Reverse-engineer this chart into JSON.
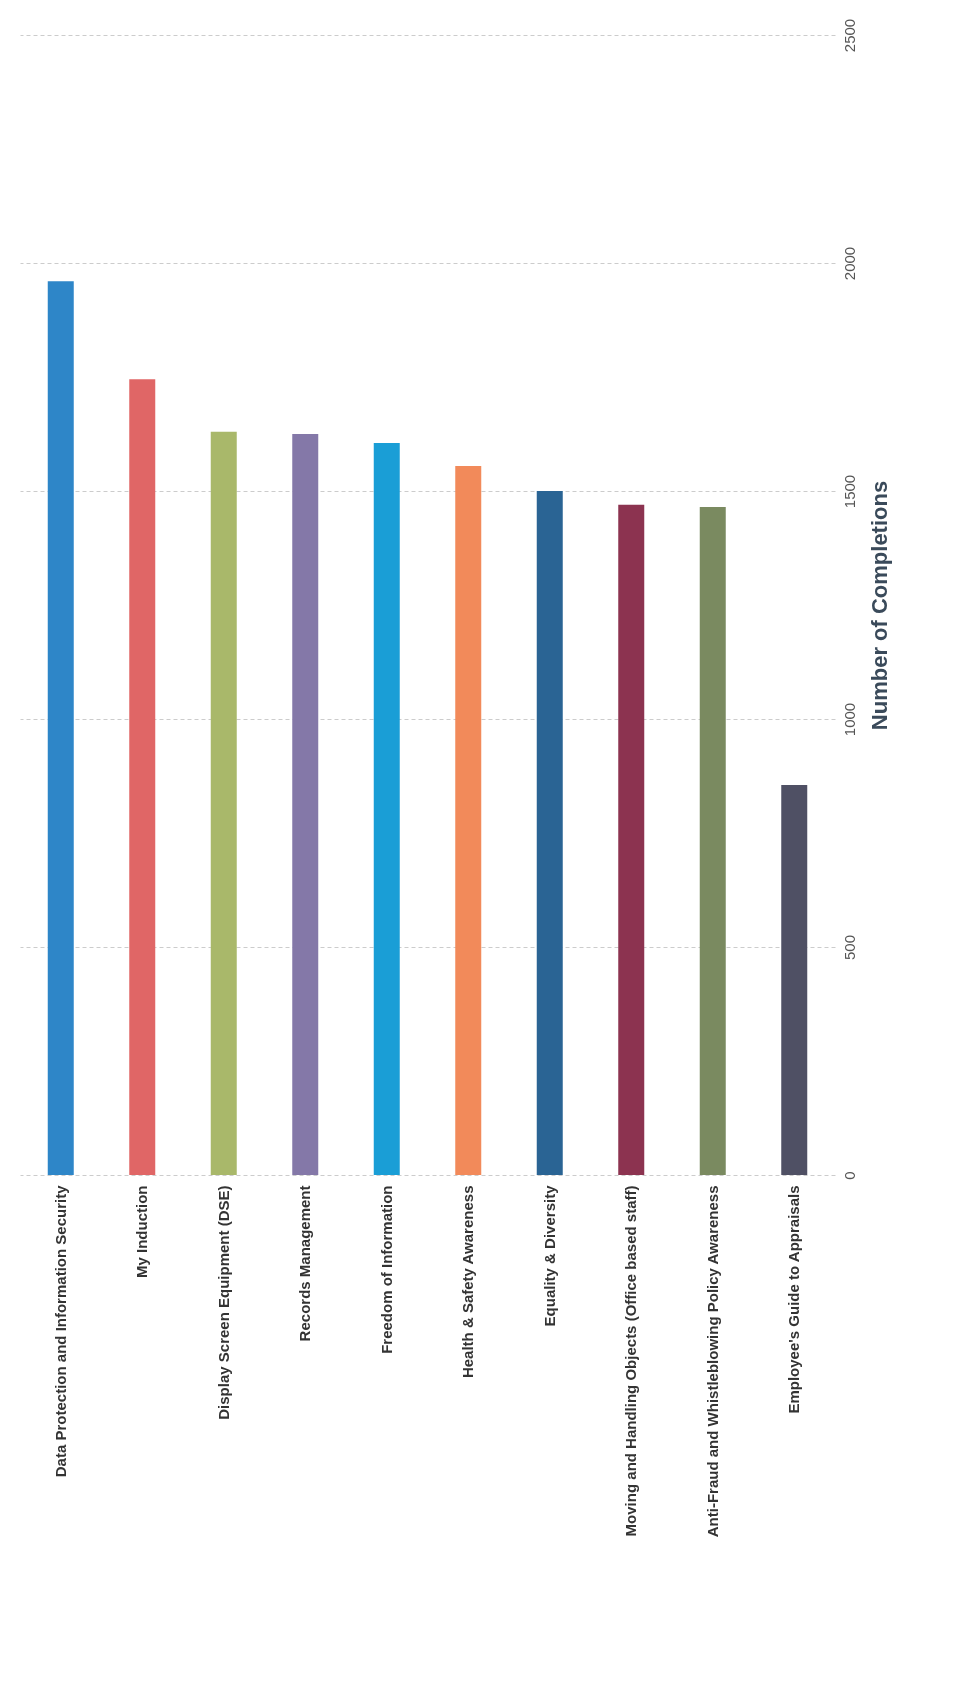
{
  "chart_data": {
    "type": "bar",
    "ylabel": "Number of Completions",
    "categories": [
      "Data Protection and Information Security",
      "My Induction",
      "Display Screen Equipment (DSE)",
      "Records Management",
      "Freedom of Information",
      "Health & Safety Awareness",
      "Equality & Diversity",
      "Moving and Handling Objects (Office based staff)",
      "Anti-Fraud and Whistleblowing Policy Awareness",
      "Employee's Guide to Appraisals"
    ],
    "values": [
      1960,
      1745,
      1630,
      1625,
      1605,
      1555,
      1500,
      1470,
      1465,
      855
    ],
    "colors": [
      "#2e86c8",
      "#e06666",
      "#a9b86a",
      "#8478a8",
      "#1a9ed6",
      "#f28a5a",
      "#2a6494",
      "#8c3350",
      "#7a8a60",
      "#4f5064"
    ],
    "ylim": [
      0,
      2500
    ],
    "yticks": [
      0,
      500,
      1000,
      1500,
      2000,
      2500
    ],
    "grid": "y"
  }
}
